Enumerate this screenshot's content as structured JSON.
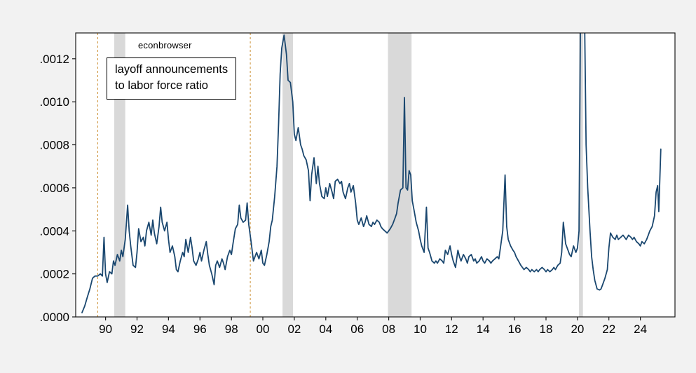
{
  "annotation": {
    "source_label": "econbrowser",
    "box_line1": "layoff announcements",
    "box_line2": "to labor force ratio"
  },
  "chart_data": {
    "type": "line",
    "title": "layoff announcements to labor force ratio",
    "source_watermark": "econbrowser",
    "xlabel": "",
    "ylabel": "",
    "grid": false,
    "legend": "none",
    "xlim": [
      1988.1,
      2026.2
    ],
    "ylim": [
      0,
      0.00132
    ],
    "x_ticks": {
      "values": [
        1990,
        1992,
        1994,
        1996,
        1998,
        2000,
        2002,
        2004,
        2006,
        2008,
        2010,
        2012,
        2014,
        2016,
        2018,
        2020,
        2022,
        2024
      ],
      "labels": [
        "90",
        "92",
        "94",
        "96",
        "98",
        "00",
        "02",
        "04",
        "06",
        "08",
        "10",
        "12",
        "14",
        "16",
        "18",
        "20",
        "22",
        "24"
      ]
    },
    "y_ticks": {
      "values": [
        0,
        0.0002,
        0.0004,
        0.0006,
        0.0008,
        0.001,
        0.0012
      ],
      "labels": [
        ".0000",
        ".0002",
        ".0004",
        ".0006",
        ".0008",
        ".0010",
        ".0012"
      ]
    },
    "recession_bands": [
      [
        1990.55,
        1991.25
      ],
      [
        2001.25,
        2001.92
      ],
      [
        2007.95,
        2009.45
      ],
      [
        2020.1,
        2020.35
      ]
    ],
    "event_lines": [
      1989.5,
      1999.2
    ],
    "colors": {
      "outer_bg": "#f2f2f2",
      "plot_bg": "#ffffff",
      "frame": "#1a1a1a",
      "line": "#1a476f",
      "recession_band": "#d9d9d9",
      "event_line": "#cc8f33",
      "text": "#000000"
    },
    "series": [
      {
        "name": "layoff announcements to labor force ratio",
        "x": [
          1988.5,
          1988.67,
          1988.83,
          1989.0,
          1989.17,
          1989.33,
          1989.5,
          1989.67,
          1989.8,
          1989.9,
          1990.0,
          1990.1,
          1990.25,
          1990.4,
          1990.5,
          1990.6,
          1990.75,
          1990.9,
          1991.0,
          1991.1,
          1991.25,
          1991.4,
          1991.5,
          1991.6,
          1991.75,
          1991.9,
          1992.0,
          1992.1,
          1992.25,
          1992.4,
          1992.5,
          1992.6,
          1992.75,
          1992.9,
          1993.0,
          1993.1,
          1993.25,
          1993.4,
          1993.5,
          1993.6,
          1993.75,
          1993.9,
          1994.0,
          1994.1,
          1994.25,
          1994.4,
          1994.5,
          1994.6,
          1994.75,
          1994.9,
          1995.0,
          1995.1,
          1995.25,
          1995.4,
          1995.5,
          1995.6,
          1995.75,
          1995.9,
          1996.0,
          1996.1,
          1996.25,
          1996.4,
          1996.5,
          1996.6,
          1996.75,
          1996.9,
          1997.0,
          1997.1,
          1997.25,
          1997.4,
          1997.5,
          1997.6,
          1997.75,
          1997.9,
          1998.0,
          1998.1,
          1998.25,
          1998.4,
          1998.5,
          1998.6,
          1998.75,
          1998.9,
          1999.0,
          1999.1,
          1999.25,
          1999.4,
          1999.5,
          1999.6,
          1999.75,
          1999.9,
          2000.0,
          2000.1,
          2000.25,
          2000.4,
          2000.5,
          2000.6,
          2000.75,
          2000.9,
          2001.0,
          2001.1,
          2001.2,
          2001.35,
          2001.5,
          2001.6,
          2001.75,
          2001.9,
          2002.0,
          2002.1,
          2002.25,
          2002.4,
          2002.5,
          2002.6,
          2002.75,
          2002.9,
          2003.0,
          2003.1,
          2003.25,
          2003.4,
          2003.5,
          2003.6,
          2003.75,
          2003.9,
          2004.0,
          2004.1,
          2004.25,
          2004.4,
          2004.5,
          2004.6,
          2004.75,
          2004.9,
          2005.0,
          2005.1,
          2005.25,
          2005.4,
          2005.5,
          2005.6,
          2005.75,
          2005.9,
          2006.0,
          2006.1,
          2006.25,
          2006.4,
          2006.5,
          2006.6,
          2006.75,
          2006.9,
          2007.0,
          2007.1,
          2007.25,
          2007.4,
          2007.5,
          2007.6,
          2007.75,
          2007.9,
          2008.0,
          2008.1,
          2008.25,
          2008.4,
          2008.5,
          2008.6,
          2008.75,
          2008.9,
          2009.0,
          2009.1,
          2009.2,
          2009.3,
          2009.4,
          2009.5,
          2009.6,
          2009.75,
          2009.9,
          2010.0,
          2010.1,
          2010.25,
          2010.4,
          2010.5,
          2010.6,
          2010.75,
          2010.9,
          2011.0,
          2011.1,
          2011.25,
          2011.4,
          2011.5,
          2011.6,
          2011.75,
          2011.9,
          2012.0,
          2012.1,
          2012.25,
          2012.4,
          2012.5,
          2012.6,
          2012.75,
          2012.9,
          2013.0,
          2013.1,
          2013.25,
          2013.4,
          2013.5,
          2013.6,
          2013.75,
          2013.9,
          2014.0,
          2014.1,
          2014.25,
          2014.4,
          2014.5,
          2014.6,
          2014.75,
          2014.9,
          2015.0,
          2015.1,
          2015.25,
          2015.4,
          2015.5,
          2015.6,
          2015.75,
          2015.9,
          2016.0,
          2016.1,
          2016.25,
          2016.4,
          2016.5,
          2016.6,
          2016.75,
          2016.9,
          2017.0,
          2017.1,
          2017.25,
          2017.4,
          2017.5,
          2017.6,
          2017.75,
          2017.9,
          2018.0,
          2018.1,
          2018.25,
          2018.4,
          2018.5,
          2018.6,
          2018.75,
          2018.9,
          2019.0,
          2019.1,
          2019.25,
          2019.4,
          2019.5,
          2019.6,
          2019.75,
          2019.9,
          2020.0,
          2020.1,
          2020.2,
          2020.3,
          2020.45,
          2020.55,
          2020.65,
          2020.8,
          2020.9,
          2021.0,
          2021.1,
          2021.25,
          2021.4,
          2021.5,
          2021.6,
          2021.75,
          2021.9,
          2022.0,
          2022.1,
          2022.25,
          2022.4,
          2022.5,
          2022.6,
          2022.75,
          2022.9,
          2023.0,
          2023.1,
          2023.25,
          2023.4,
          2023.5,
          2023.6,
          2023.75,
          2023.9,
          2024.0,
          2024.1,
          2024.25,
          2024.4,
          2024.5,
          2024.6,
          2024.75,
          2024.9,
          2025.0,
          2025.1,
          2025.17,
          2025.3
        ],
        "y": [
          2e-05,
          5e-05,
          9e-05,
          0.00013,
          0.00018,
          0.00019,
          0.00019,
          0.0002,
          0.00019,
          0.00037,
          0.0002,
          0.00016,
          0.00021,
          0.0002,
          0.00026,
          0.00024,
          0.00029,
          0.00026,
          0.00031,
          0.00028,
          0.00036,
          0.00052,
          0.0004,
          0.00033,
          0.00024,
          0.00023,
          0.0003,
          0.00041,
          0.00035,
          0.00037,
          0.00033,
          0.0004,
          0.00044,
          0.00038,
          0.00045,
          0.00039,
          0.00034,
          0.00042,
          0.00051,
          0.00044,
          0.0004,
          0.00044,
          0.00036,
          0.0003,
          0.00033,
          0.00028,
          0.00022,
          0.00021,
          0.00026,
          0.0003,
          0.00028,
          0.00036,
          0.0003,
          0.00037,
          0.00032,
          0.00026,
          0.00024,
          0.00027,
          0.0003,
          0.00026,
          0.00031,
          0.00035,
          0.00029,
          0.00024,
          0.0002,
          0.00015,
          0.00024,
          0.00026,
          0.00023,
          0.00027,
          0.00025,
          0.00022,
          0.00028,
          0.00031,
          0.00029,
          0.00034,
          0.00041,
          0.00043,
          0.00052,
          0.00046,
          0.00044,
          0.00045,
          0.00053,
          0.00043,
          0.00035,
          0.00026,
          0.00028,
          0.0003,
          0.00027,
          0.00031,
          0.00025,
          0.00024,
          0.00029,
          0.00035,
          0.00042,
          0.00045,
          0.00056,
          0.0007,
          0.0009,
          0.00113,
          0.00125,
          0.00131,
          0.00122,
          0.0011,
          0.00109,
          0.001,
          0.00085,
          0.00082,
          0.00088,
          0.0008,
          0.00078,
          0.00075,
          0.00073,
          0.00068,
          0.00054,
          0.00066,
          0.00074,
          0.00062,
          0.0007,
          0.00062,
          0.00056,
          0.00055,
          0.0006,
          0.00056,
          0.00062,
          0.00058,
          0.00055,
          0.00063,
          0.00064,
          0.00062,
          0.00063,
          0.00058,
          0.00055,
          0.0006,
          0.00062,
          0.00058,
          0.00061,
          0.00053,
          0.00045,
          0.00043,
          0.00046,
          0.00042,
          0.00044,
          0.00047,
          0.00043,
          0.00042,
          0.00044,
          0.00043,
          0.00045,
          0.00044,
          0.00042,
          0.00041,
          0.0004,
          0.00039,
          0.0004,
          0.00041,
          0.00043,
          0.00046,
          0.00048,
          0.00053,
          0.00059,
          0.0006,
          0.00102,
          0.0006,
          0.00059,
          0.00068,
          0.00066,
          0.00054,
          0.0005,
          0.00044,
          0.0004,
          0.00036,
          0.00033,
          0.0003,
          0.00051,
          0.00032,
          0.0003,
          0.00026,
          0.00025,
          0.00026,
          0.00025,
          0.00027,
          0.00026,
          0.00025,
          0.00031,
          0.00029,
          0.00033,
          0.00029,
          0.00026,
          0.00023,
          0.00031,
          0.00028,
          0.00026,
          0.00029,
          0.00027,
          0.00025,
          0.00028,
          0.00029,
          0.00026,
          0.00027,
          0.00025,
          0.00026,
          0.00028,
          0.00026,
          0.00025,
          0.00027,
          0.00026,
          0.00025,
          0.00026,
          0.00027,
          0.00028,
          0.00027,
          0.00032,
          0.0004,
          0.00066,
          0.00042,
          0.00036,
          0.00033,
          0.00031,
          0.0003,
          0.00028,
          0.00026,
          0.00024,
          0.00023,
          0.00022,
          0.00023,
          0.00022,
          0.00021,
          0.00022,
          0.00021,
          0.00022,
          0.00021,
          0.00022,
          0.00023,
          0.00022,
          0.00021,
          0.00022,
          0.00021,
          0.00022,
          0.00023,
          0.00022,
          0.00024,
          0.00025,
          0.0003,
          0.00044,
          0.00034,
          0.00031,
          0.00029,
          0.00028,
          0.00033,
          0.0003,
          0.00032,
          0.0004,
          0.0015,
          0.003,
          0.0014,
          0.0008,
          0.0006,
          0.0004,
          0.00028,
          0.00022,
          0.00017,
          0.00013,
          0.000125,
          0.00013,
          0.00015,
          0.00018,
          0.00022,
          0.00032,
          0.00039,
          0.00037,
          0.00036,
          0.00038,
          0.00036,
          0.00037,
          0.00038,
          0.00037,
          0.00036,
          0.00038,
          0.00037,
          0.00036,
          0.00037,
          0.00035,
          0.00034,
          0.00033,
          0.00035,
          0.00034,
          0.00036,
          0.00038,
          0.0004,
          0.00042,
          0.00047,
          0.00058,
          0.00061,
          0.00049,
          0.00078
        ]
      }
    ]
  }
}
